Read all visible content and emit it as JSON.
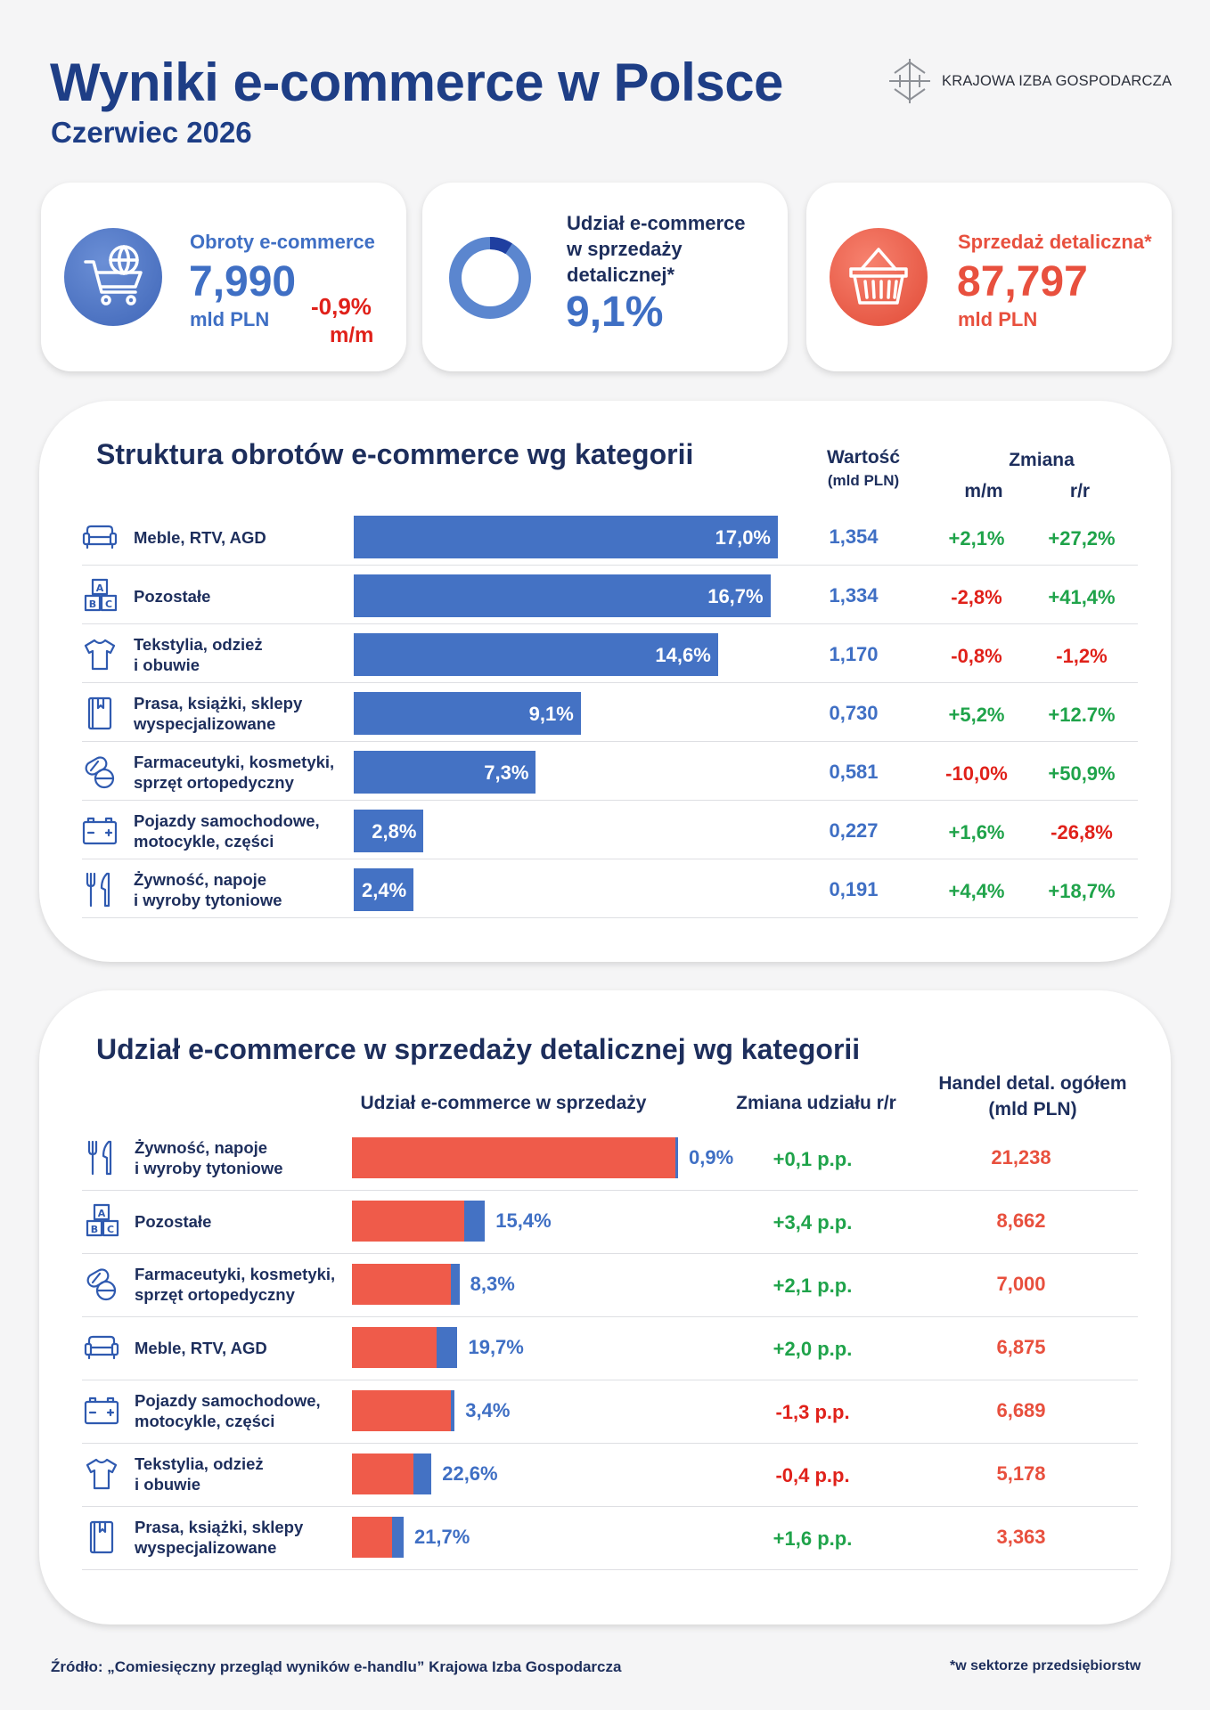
{
  "header": {
    "title": "Wyniki e-commerce w Polsce",
    "subtitle": "Czerwiec 2026",
    "logo_text": "KRAJOWA IZBA GOSPODARCZA"
  },
  "kpis": {
    "turnover": {
      "label": "Obroty e-commerce",
      "value": "7,990",
      "unit": "mld PLN",
      "change": "-0,9%",
      "change_period": "m/m",
      "icon": "cart-globe-icon"
    },
    "share": {
      "label_lines": [
        "Udział e-commerce",
        "w sprzedaży",
        "detalicznej*"
      ],
      "value": "9,1%",
      "value_num": 9.1,
      "icon": "pie-icon"
    },
    "retail": {
      "label": "Sprzedaż detaliczna*",
      "value": "87,797",
      "unit": "mld PLN",
      "icon": "basket-icon"
    }
  },
  "colors": {
    "navy": "#1e3e86",
    "blue": "#4472c4",
    "red": "#ef5b4a",
    "green": "#1fa34a",
    "alert": "#e0211a"
  },
  "structure": {
    "title": "Struktura obrotów e-commerce wg kategorii",
    "col_value": "Wartość",
    "col_value_unit": "(mld PLN)",
    "col_change": "Zmiana",
    "col_mm": "m/m",
    "col_rr": "r/r"
  },
  "share_section": {
    "title": "Udział e-commerce w sprzedaży detalicznej wg kategorii",
    "col_share": "Udział e-commerce w sprzedaży",
    "col_change": "Zmiana udziału r/r",
    "col_total_line1": "Handel detal. ogółem",
    "col_total_line2": "(mld PLN)"
  },
  "chart_data": [
    {
      "type": "bar",
      "title": "Struktura obrotów e-commerce wg kategorii",
      "categories": [
        "Meble, RTV, AGD",
        "Pozostałe",
        "Tekstylia, odzież\ni obuwie",
        "Prasa, książki, sklepy\nwyspecjalizowane",
        "Farmaceutyki, kosmetyki,\nsprzęt ortopedyczny",
        "Pojazdy samochodowe,\nmotocykle, części",
        "Żywność, napoje\ni wyroby tytoniowe"
      ],
      "icons": [
        "sofa-icon",
        "blocks-icon",
        "shirt-icon",
        "book-icon",
        "pills-icon",
        "battery-icon",
        "cutlery-icon"
      ],
      "values": [
        17.0,
        16.7,
        14.6,
        9.1,
        7.3,
        2.8,
        2.4
      ],
      "value_labels": [
        "17,0%",
        "16,7%",
        "14,6%",
        "9,1%",
        "7,3%",
        "2,8%",
        "2,4%"
      ],
      "amounts": [
        "1,354",
        "1,334",
        "1,170",
        "0,730",
        "0,581",
        "0,227",
        "0,191"
      ],
      "change_mm": [
        "+2,1%",
        "-2,8%",
        "-0,8%",
        "+5,2%",
        "-10,0%",
        "+1,6%",
        "+4,4%"
      ],
      "change_rr": [
        "+27,2%",
        "+41,4%",
        "-1,2%",
        "+12.7%",
        "+50,9%",
        "-26,8%",
        "+18,7%"
      ],
      "xlim": [
        0,
        17.0
      ]
    },
    {
      "type": "bar",
      "title": "Udział e-commerce w sprzedaży detalicznej wg kategorii",
      "categories": [
        "Żywność, napoje\ni wyroby tytoniowe",
        "Pozostałe",
        "Farmaceutyki, kosmetyki,\nsprzęt ortopedyczny",
        "Meble, RTV, AGD",
        "Pojazdy samochodowe,\nmotocykle, części",
        "Tekstylia, odzież\ni obuwie",
        "Prasa, książki, sklepy\nwyspecjalizowane"
      ],
      "icons": [
        "cutlery-icon",
        "blocks-icon",
        "pills-icon",
        "sofa-icon",
        "battery-icon",
        "shirt-icon",
        "book-icon"
      ],
      "retail_total": [
        21.238,
        8.662,
        7.0,
        6.875,
        6.689,
        5.178,
        3.363
      ],
      "retail_total_labels": [
        "21,238",
        "8,662",
        "7,000",
        "6,875",
        "6,689",
        "5,178",
        "3,363"
      ],
      "ecommerce_share": [
        0.9,
        15.4,
        8.3,
        19.7,
        3.4,
        22.6,
        21.7
      ],
      "share_labels": [
        "0,9%",
        "15,4%",
        "8,3%",
        "19,7%",
        "3,4%",
        "22,6%",
        "21,7%"
      ],
      "share_change": [
        "+0,1 p.p.",
        "+3,4 p.p.",
        "+2,1 p.p.",
        "+2,0 p.p.",
        "-1,3 p.p.",
        "-0,4 p.p.",
        "+1,6 p.p."
      ],
      "xlim": [
        0,
        21.238
      ]
    }
  ],
  "footer": {
    "source": "Źródło: „Comiesięczny przegląd wyników e-handlu” Krajowa Izba Gospodarcza",
    "note": "*w sektorze przedsiębiorstw"
  }
}
